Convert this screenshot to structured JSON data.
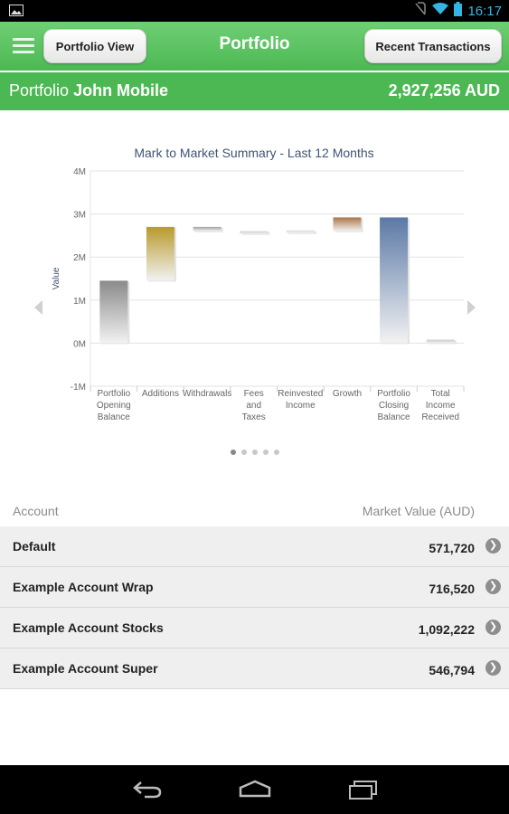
{
  "status_bar": {
    "time": "16:17"
  },
  "action_bar": {
    "title": "Portfolio",
    "left_button": "Portfolio View",
    "right_button": "Recent Transactions"
  },
  "portfolio": {
    "label": "Portfolio",
    "name": "John Mobile",
    "total": "2,927,256 AUD"
  },
  "chart_data": {
    "type": "bar",
    "subtype": "waterfall",
    "title": "Mark to Market Summary - Last 12 Months",
    "ylabel": "Value",
    "xlabel": "",
    "ylim": [
      -1000000,
      4000000
    ],
    "yticks": [
      "4M",
      "3M",
      "2M",
      "1M",
      "0M",
      "-1M"
    ],
    "grid": true,
    "categories": [
      "Portfolio Opening Balance",
      "Additions",
      "Withdrawals",
      "Fees and Taxes",
      "Reinvested Income",
      "Growth",
      "Portfolio Closing Balance",
      "Total Income Received"
    ],
    "category_lines": [
      [
        "Portfolio",
        "Opening",
        "Balance"
      ],
      [
        "Additions"
      ],
      [
        "Withdrawals"
      ],
      [
        "Fees",
        "and",
        "Taxes"
      ],
      [
        "Reinvested",
        "Income"
      ],
      [
        "Growth"
      ],
      [
        "Portfolio",
        "Closing",
        "Balance"
      ],
      [
        "Total",
        "Income",
        "Received"
      ]
    ],
    "bars": [
      {
        "start": 0,
        "end": 1450000,
        "color": "#8a8a8a"
      },
      {
        "start": 1450000,
        "end": 2700000,
        "color": "#b89a2c"
      },
      {
        "start": 2700000,
        "end": 2600000,
        "color": "#a0a0a0"
      },
      {
        "start": 2600000,
        "end": 2600000,
        "color": "#cccccc"
      },
      {
        "start": 2580000,
        "end": 2620000,
        "color": "#d8d8d8"
      },
      {
        "start": 2600000,
        "end": 2920000,
        "color": "#a9754a"
      },
      {
        "start": 0,
        "end": 2920000,
        "color": "#5b79a6"
      },
      {
        "start": 0,
        "end": 80000,
        "color": "#c8c8c8"
      }
    ]
  },
  "pager": {
    "count": 5,
    "active": 0
  },
  "table": {
    "col_account": "Account",
    "col_value": "Market Value (AUD)",
    "rows": [
      {
        "account": "Default",
        "value": "571,720"
      },
      {
        "account": "Example Account Wrap",
        "value": "716,520"
      },
      {
        "account": "Example Account Stocks",
        "value": "1,092,222"
      },
      {
        "account": "Example Account Super",
        "value": "546,794"
      }
    ]
  },
  "icons": {
    "menu": "hamburger-icon",
    "row_action": "chevron-right-icon",
    "back": "back-icon",
    "home": "home-icon",
    "recents": "recents-icon"
  },
  "colors": {
    "brand_green": "#4cb853",
    "row_bg": "#efefef",
    "status_blue": "#33b5e5"
  }
}
